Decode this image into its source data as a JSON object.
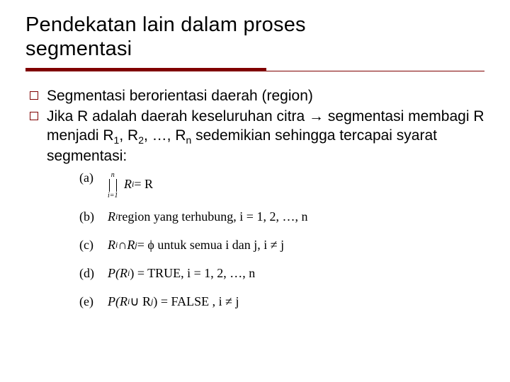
{
  "colors": {
    "accent": "#800000",
    "text": "#000000",
    "background": "#ffffff"
  },
  "title": {
    "line1": "Pendekatan lain dalam proses",
    "line2": "segmentasi"
  },
  "bullets": [
    {
      "text": "Segmentasi berorientasi daerah (region)"
    },
    {
      "html": "Jika R adalah daerah keseluruhan citra → segmentasi membagi R menjadi R<sub>1</sub>, R<sub>2</sub>, …, R<sub>n</sub> sedemikian sehingga tercapai syarat segmentasi:"
    }
  ],
  "conditions": {
    "a": {
      "label": "(a)",
      "union_top": "n",
      "union_bot": "i=1",
      "body": "R",
      "body_sub": "i",
      "eq": " = R"
    },
    "b": {
      "label": "(b)",
      "lhs": "R",
      "lhs_sub": "i",
      "rest": " region yang terhubung, i = 1, 2, …, n"
    },
    "c": {
      "label": "(c)",
      "l": "R",
      "l_sub": "i",
      "op": " ∩ ",
      "r": "R",
      "r_sub": "j",
      "eq": " = ϕ  untuk semua i dan j, i ≠ j"
    },
    "d": {
      "label": "(d)",
      "pref": "P(R",
      "sub": "i",
      "suf": ") = TRUE, i = 1, 2, …, n"
    },
    "e": {
      "label": "(e)",
      "pref": "P(R",
      "sub1": "i",
      "op": " ∪ R",
      "sub2": "j",
      "suf": ") = FALSE , i ≠ j"
    }
  }
}
